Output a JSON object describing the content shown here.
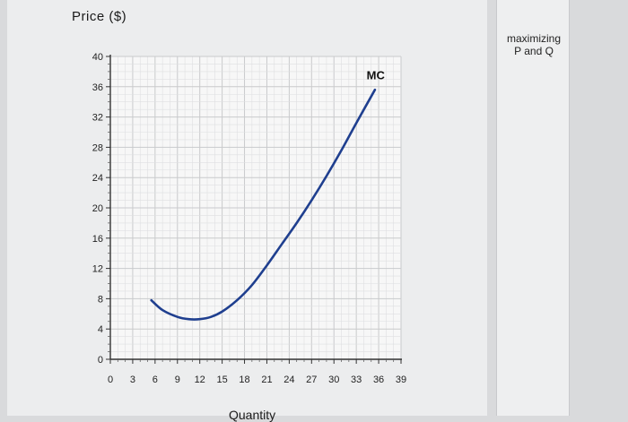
{
  "chart_data": {
    "type": "line",
    "ylabel": "Price ($)",
    "xlabel": "Quantity",
    "x_ticks": [
      0,
      3,
      6,
      9,
      12,
      15,
      18,
      21,
      24,
      27,
      30,
      33,
      36,
      39
    ],
    "y_ticks": [
      0,
      4,
      8,
      12,
      16,
      20,
      24,
      28,
      32,
      36,
      40
    ],
    "xlim": [
      0,
      39
    ],
    "ylim": [
      0,
      40
    ],
    "grid": true,
    "series": [
      {
        "name": "MC",
        "color": "#1f3f8f",
        "x": [
          5.5,
          7,
          9,
          10.5,
          12,
          13.5,
          15,
          17,
          19,
          21,
          23,
          25,
          27,
          29,
          31,
          33,
          35.5
        ],
        "y": [
          7.8,
          6.5,
          5.6,
          5.3,
          5.3,
          5.6,
          6.3,
          7.8,
          9.8,
          12.4,
          15.2,
          18.0,
          21.0,
          24.2,
          27.6,
          31.2,
          35.6
        ]
      }
    ],
    "annotations": [
      {
        "text": "MC",
        "x": 35.6,
        "y": 37
      }
    ]
  },
  "side_panel": {
    "caption_line1": "maximizing",
    "caption_line2": "P and Q"
  }
}
